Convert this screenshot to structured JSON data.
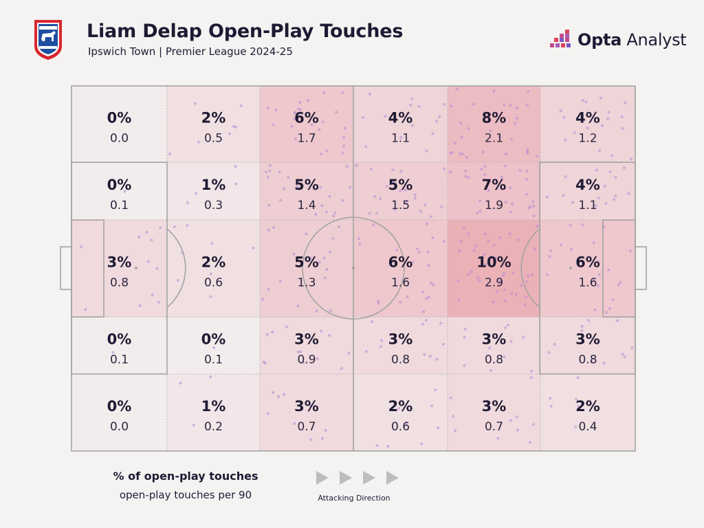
{
  "header": {
    "title": "Liam Delap Open-Play Touches",
    "subtitle": "Ipswich Town | Premier League 2024-25",
    "crest_icon": "ipswich-town-crest-icon",
    "brand": {
      "bold": "Opta",
      "regular": " Analyst",
      "icon": "opta-analyst-logo-icon"
    }
  },
  "legend": {
    "pct_label": "% of open-play touches",
    "per90_label": "open-play touches per 90",
    "direction_label": "Attacking Direction",
    "direction_icon": "play-triangle-icon"
  },
  "colors": {
    "background": "#f4f3f2",
    "heat_max": "#e8a4ad",
    "touch_dot": "#b58ad6",
    "text": "#1e1a33",
    "pitch_lines": "#a3a3a3"
  },
  "chart_data": {
    "type": "heatmap",
    "title": "Liam Delap Open-Play Touches",
    "subtitle": "Ipswich Town | Premier League 2024-25",
    "value_labels": [
      "% of open-play touches",
      "open-play touches per 90"
    ],
    "x_zones": 6,
    "y_zones": 5,
    "attacking_direction": "left-to-right",
    "zones": [
      [
        {
          "pct": "0%",
          "per90": "0.0"
        },
        {
          "pct": "2%",
          "per90": "0.5"
        },
        {
          "pct": "6%",
          "per90": "1.7"
        },
        {
          "pct": "4%",
          "per90": "1.1"
        },
        {
          "pct": "8%",
          "per90": "2.1"
        },
        {
          "pct": "4%",
          "per90": "1.2"
        }
      ],
      [
        {
          "pct": "0%",
          "per90": "0.1"
        },
        {
          "pct": "1%",
          "per90": "0.3"
        },
        {
          "pct": "5%",
          "per90": "1.4"
        },
        {
          "pct": "5%",
          "per90": "1.5"
        },
        {
          "pct": "7%",
          "per90": "1.9"
        },
        {
          "pct": "4%",
          "per90": "1.1"
        }
      ],
      [
        {
          "pct": "3%",
          "per90": "0.8"
        },
        {
          "pct": "2%",
          "per90": "0.6"
        },
        {
          "pct": "5%",
          "per90": "1.3"
        },
        {
          "pct": "6%",
          "per90": "1.6"
        },
        {
          "pct": "10%",
          "per90": "2.9"
        },
        {
          "pct": "6%",
          "per90": "1.6"
        }
      ],
      [
        {
          "pct": "0%",
          "per90": "0.1"
        },
        {
          "pct": "0%",
          "per90": "0.1"
        },
        {
          "pct": "3%",
          "per90": "0.9"
        },
        {
          "pct": "3%",
          "per90": "0.8"
        },
        {
          "pct": "3%",
          "per90": "0.8"
        },
        {
          "pct": "3%",
          "per90": "0.8"
        }
      ],
      [
        {
          "pct": "0%",
          "per90": "0.0"
        },
        {
          "pct": "1%",
          "per90": "0.2"
        },
        {
          "pct": "3%",
          "per90": "0.7"
        },
        {
          "pct": "2%",
          "per90": "0.6"
        },
        {
          "pct": "3%",
          "per90": "0.7"
        },
        {
          "pct": "2%",
          "per90": "0.4"
        }
      ]
    ]
  }
}
